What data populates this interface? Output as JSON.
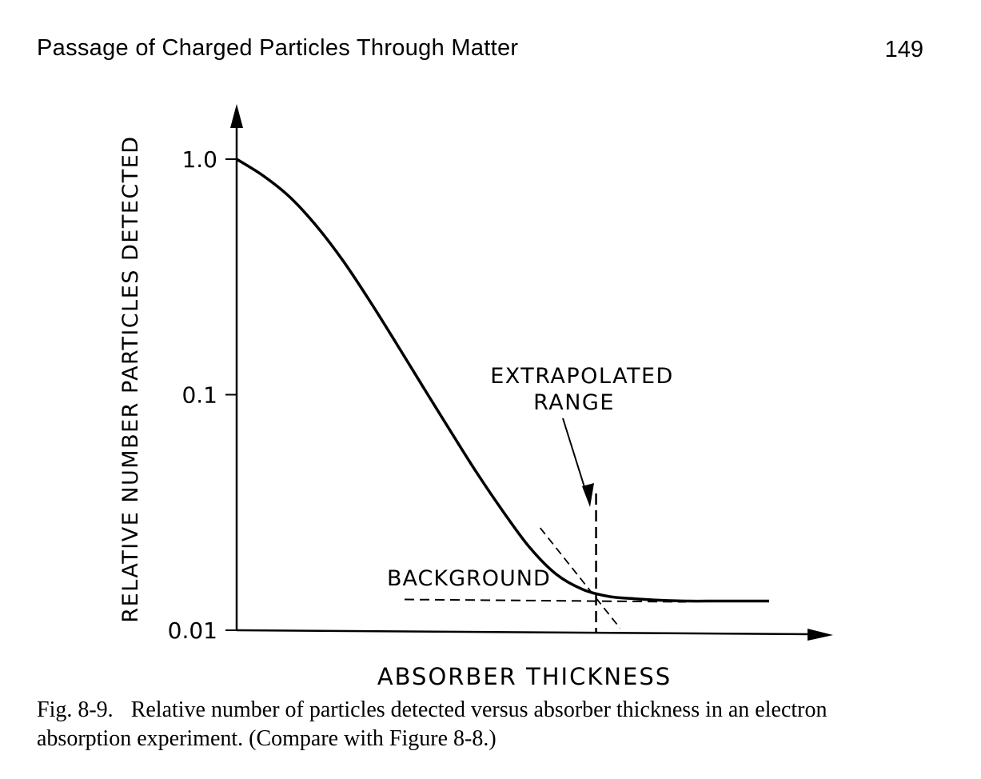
{
  "page": {
    "running_title": "Passage of Charged Particles Through Matter",
    "page_number": "149"
  },
  "chart_data": {
    "type": "line",
    "xlabel": "ABSORBER THICKNESS",
    "ylabel": "RELATIVE NUMBER PARTICLES DETECTED",
    "yscale": "log",
    "ylim": [
      0.01,
      1.0
    ],
    "yticks": [
      {
        "value": 1.0,
        "label": "1.0"
      },
      {
        "value": 0.1,
        "label": "0.1"
      },
      {
        "value": 0.01,
        "label": "0.01"
      }
    ],
    "xlim": [
      0,
      1
    ],
    "x_ticks_labeled": false,
    "grid": false,
    "series": [
      {
        "style": "solid",
        "x": [
          0,
          0.05,
          0.1,
          0.15,
          0.2,
          0.25,
          0.3,
          0.35,
          0.4,
          0.45,
          0.5,
          0.55,
          0.6,
          0.65,
          0.7,
          0.75,
          0.8,
          0.85,
          0.9,
          0.95,
          1.0
        ],
        "y": [
          1.0,
          0.85,
          0.69,
          0.52,
          0.37,
          0.25,
          0.165,
          0.108,
          0.071,
          0.047,
          0.032,
          0.0225,
          0.0173,
          0.0149,
          0.0139,
          0.0136,
          0.0134,
          0.0133,
          0.0133,
          0.0133,
          0.0133
        ]
      }
    ],
    "annotations": {
      "extrapolated_range": {
        "lines": [
          "EXTRAPOLATED",
          "RANGE"
        ],
        "x": 0.675
      },
      "background": {
        "label": "BACKGROUND",
        "y": 0.0133
      },
      "extrapolation_line": {
        "x": [
          0.57,
          0.72
        ],
        "y": [
          0.0272,
          0.0102
        ]
      }
    }
  },
  "caption": {
    "figure_number": "Fig. 8-9.",
    "text_line1": "Relative number of particles detected versus absorber thickness in an electron",
    "text_line2": "absorption experiment. (Compare with Figure 8-8.)"
  }
}
